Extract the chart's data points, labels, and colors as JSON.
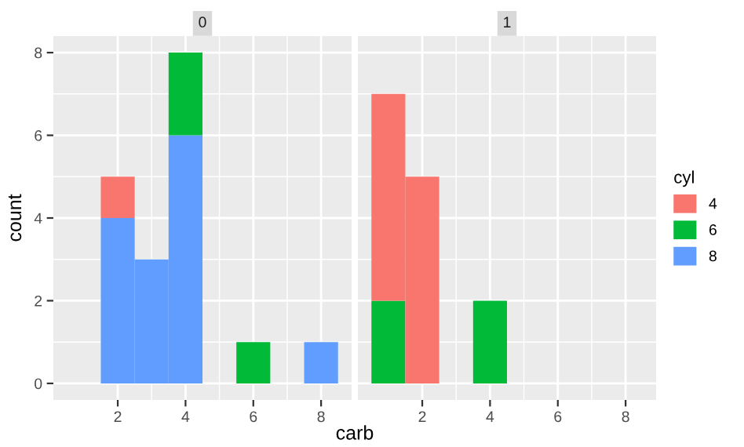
{
  "chart_data": [
    {
      "type": "bar",
      "title": "0",
      "xlabel": "carb",
      "ylabel": "count",
      "stacked": true,
      "x": [
        2,
        3,
        4,
        6,
        8
      ],
      "xlim": [
        0.1,
        8.9
      ],
      "xticks": [
        2,
        4,
        6,
        8
      ],
      "ylim": [
        -0.4,
        8.4
      ],
      "yticks": [
        0,
        2,
        4,
        6,
        8
      ],
      "grid": true,
      "legend": "right",
      "legend_title": "cyl",
      "series": [
        {
          "name": "8",
          "color": "#619cff",
          "values": [
            4,
            3,
            6,
            0,
            1
          ]
        },
        {
          "name": "6",
          "color": "#00ba38",
          "values": [
            0,
            0,
            2,
            1,
            0
          ]
        },
        {
          "name": "4",
          "color": "#f8766d",
          "values": [
            1,
            0,
            0,
            0,
            0
          ]
        }
      ]
    },
    {
      "type": "bar",
      "title": "1",
      "stacked": true,
      "x": [
        1,
        2,
        4
      ],
      "xlim": [
        0.1,
        8.9
      ],
      "xticks": [
        2,
        4,
        6,
        8
      ],
      "ylim": [
        -0.4,
        8.4
      ],
      "yticks": [
        0,
        2,
        4,
        6,
        8
      ],
      "grid": true,
      "tick_labels": "x",
      "series": [
        {
          "color": "#00ba38",
          "values": [
            2,
            0,
            2
          ]
        },
        {
          "color": "#f8766d",
          "values": [
            5,
            5,
            0
          ]
        }
      ]
    }
  ]
}
